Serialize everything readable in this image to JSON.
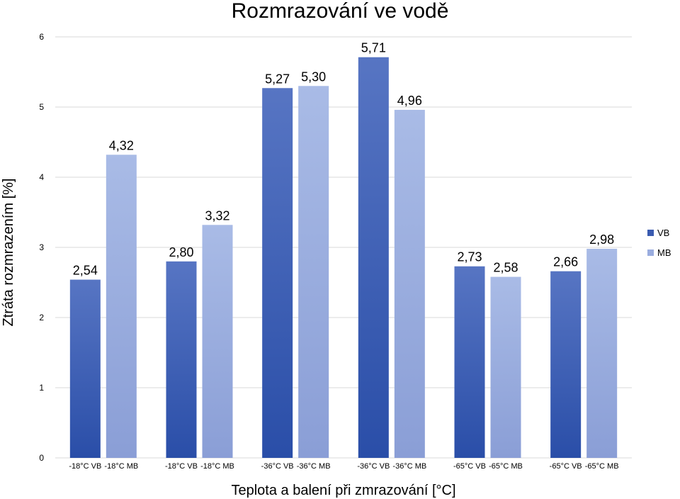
{
  "chart_data": {
    "type": "bar",
    "title": "Rozmrazování ve vodě",
    "xlabel": "Teplota a balení při zmrazování [°C]",
    "ylabel": "Ztráta rozmrazením [%]",
    "ylim": [
      0,
      6
    ],
    "yticks": [
      "0",
      "1",
      "2",
      "3",
      "4",
      "5",
      "6"
    ],
    "grid": true,
    "legend_position": "right",
    "series_colors": {
      "VB": "#3558b0",
      "MB": "#9aaddf"
    },
    "legend": [
      {
        "name": "VB",
        "color": "#3a5bb0"
      },
      {
        "name": "MB",
        "color": "#9aaddf"
      }
    ],
    "bars": [
      {
        "label": "-18°C VB",
        "series": "VB",
        "value": 2.54,
        "value_label": "2,54"
      },
      {
        "label": "-18°C MB",
        "series": "MB",
        "value": 4.32,
        "value_label": "4,32"
      },
      {
        "label": "-18°C VB",
        "series": "VB",
        "value": 2.8,
        "value_label": "2,80"
      },
      {
        "label": "-18°C MB",
        "series": "MB",
        "value": 3.32,
        "value_label": "3,32"
      },
      {
        "label": "-36°C VB",
        "series": "VB",
        "value": 5.27,
        "value_label": "5,27"
      },
      {
        "label": "-36°C MB",
        "series": "MB",
        "value": 5.3,
        "value_label": "5,30"
      },
      {
        "label": "-36°C VB",
        "series": "VB",
        "value": 5.71,
        "value_label": "5,71"
      },
      {
        "label": "-36°C MB",
        "series": "MB",
        "value": 4.96,
        "value_label": "4,96"
      },
      {
        "label": "-65°C VB",
        "series": "VB",
        "value": 2.73,
        "value_label": "2,73"
      },
      {
        "label": "-65°C MB",
        "series": "MB",
        "value": 2.58,
        "value_label": "2,58"
      },
      {
        "label": "-65°C VB",
        "series": "VB",
        "value": 2.66,
        "value_label": "2,66"
      },
      {
        "label": "-65°C MB",
        "series": "MB",
        "value": 2.98,
        "value_label": "2,98"
      }
    ]
  }
}
